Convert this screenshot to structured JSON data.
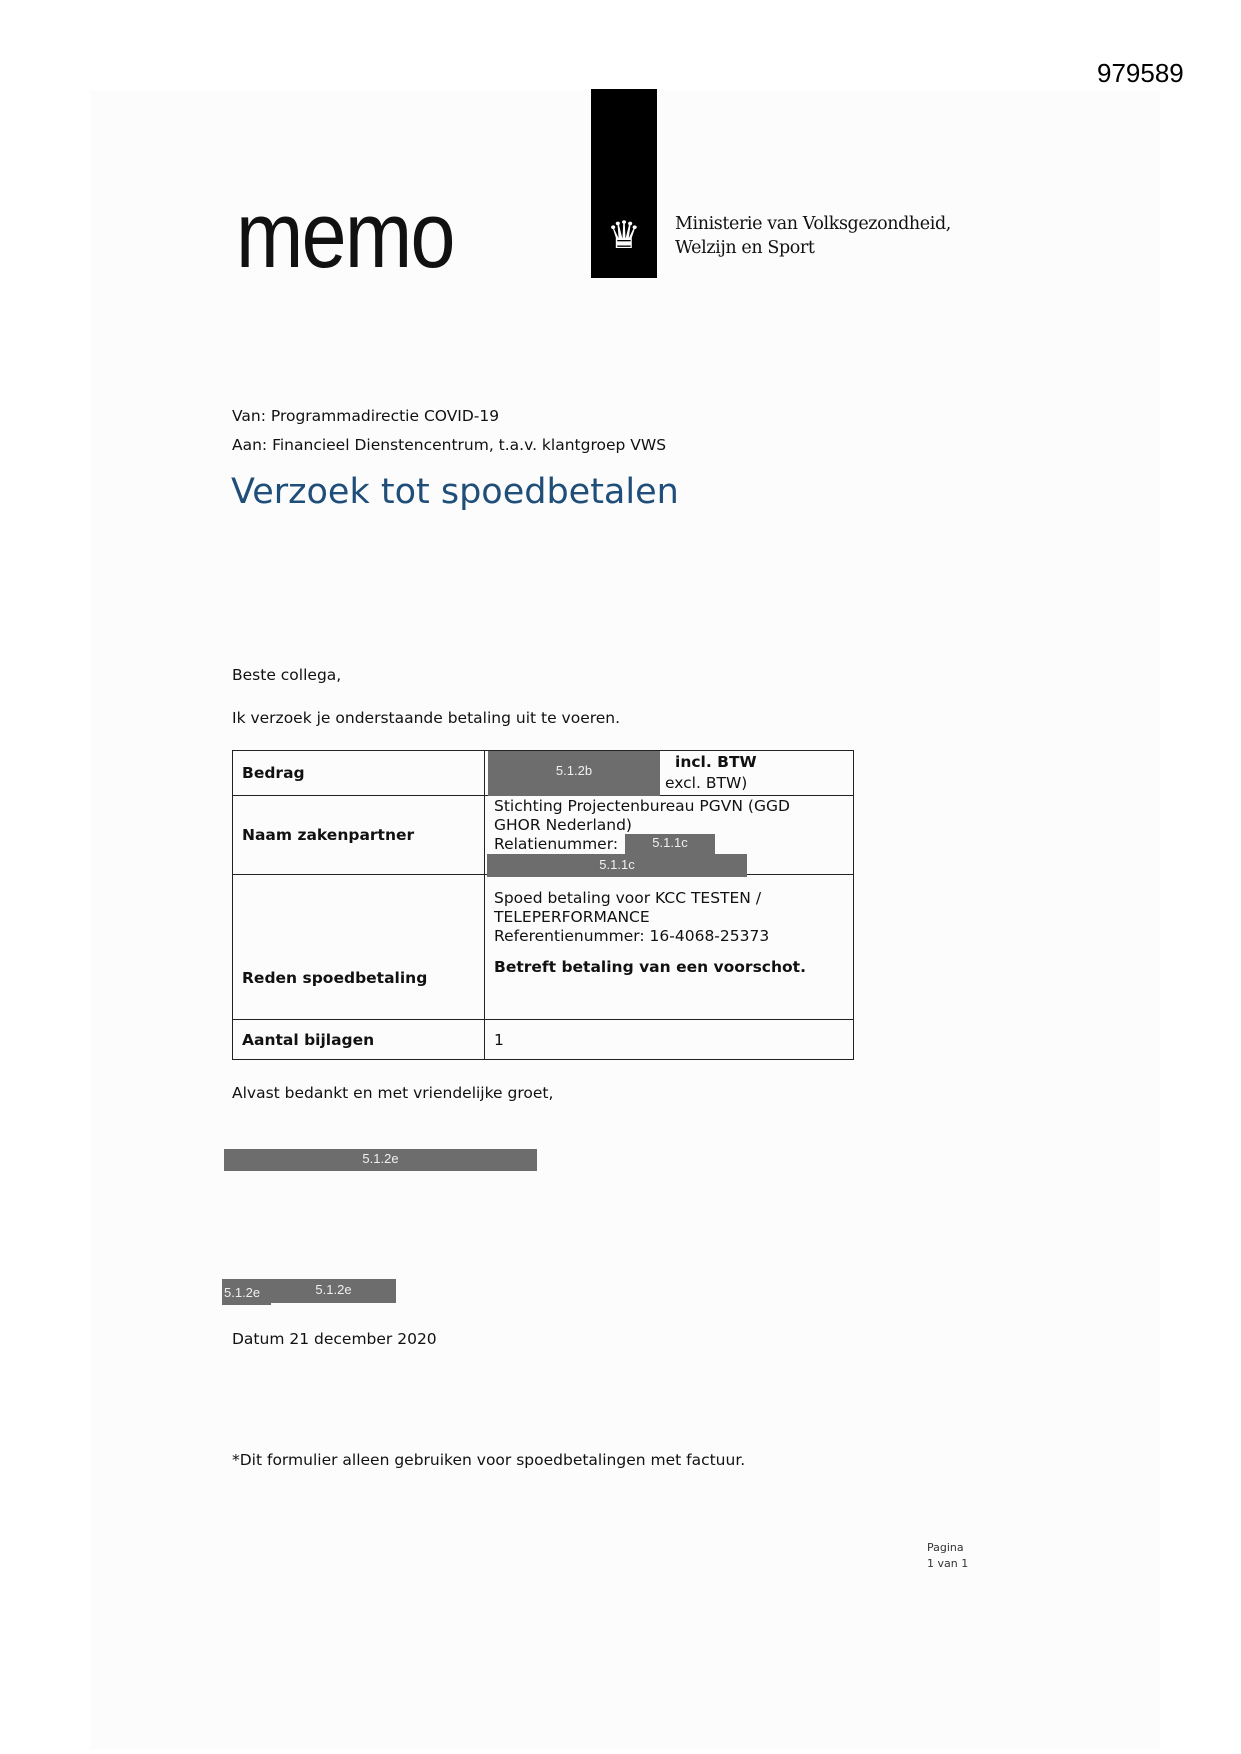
{
  "document_number": "979589",
  "header": {
    "memo_label": "memo",
    "ministry_line1": "Ministerie van Volksgezondheid,",
    "ministry_line2": "Welzijn en Sport"
  },
  "van": "Van: Programmadirectie COVID-19",
  "aan": "Aan: Financieel Dienstencentrum, t.a.v. klantgroep VWS",
  "title": "Verzoek tot spoedbetalen",
  "greeting": "Beste collega,",
  "request": "Ik verzoek je onderstaande betaling uit te voeren.",
  "table": {
    "bedrag_label": "Bedrag",
    "bedrag_incl": "incl. BTW",
    "bedrag_excl": "excl. BTW)",
    "bedrag_redaction": "5.1.2b",
    "partner_label": "Naam zakenpartner",
    "partner_name": "Stichting Projectenbureau PGVN (GGD GHOR Nederland)",
    "relatie_label": "Relatienummer:",
    "relatie_redaction": "5.1.1c",
    "relatie_redaction2": "5.1.1c",
    "reden_label": "Reden spoedbetaling",
    "reden_line1": "Spoed betaling voor KCC TESTEN / TELEPERFORMANCE",
    "reden_ref": "Referentienummer: 16-4068-25373",
    "reden_bold": "Betreft betaling van een voorschot.",
    "bijlagen_label": "Aantal bijlagen",
    "bijlagen_value": "1"
  },
  "closing": "Alvast bedankt en met vriendelijke groet,",
  "signature_redaction": "5.1.2e",
  "name_redaction1": "5.1.2e",
  "name_redaction2": "5.1.2e",
  "datum": "Datum 21 december 2020",
  "footnote": "*Dit formulier alleen gebruiken voor spoedbetalingen met factuur.",
  "pagina": "Pagina",
  "pagina_count": "1 van 1"
}
